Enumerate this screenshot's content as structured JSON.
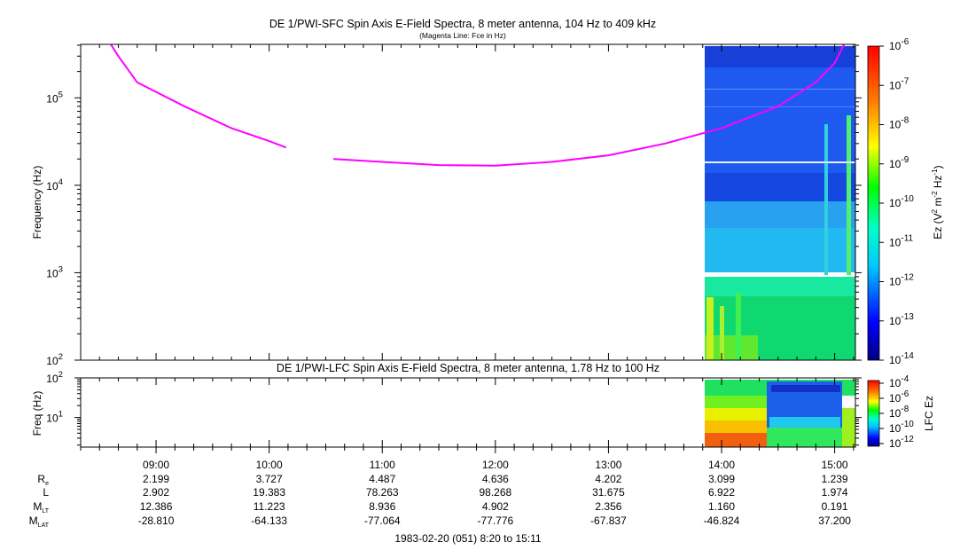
{
  "chart_data": [
    {
      "type": "heatmap",
      "title": "DE 1/PWI-SFC  Spin Axis E-Field Spectra, 8 meter antenna, 104 Hz to 409 kHz",
      "subtitle": "(Magenta Line: Fce in Hz)",
      "ylabel": "Frequency (Hz)",
      "yscale": "log",
      "ylim": [
        100,
        409000
      ],
      "y_ticks": [
        {
          "value": 100,
          "base": "10",
          "exp": "2"
        },
        {
          "value": 1000,
          "base": "10",
          "exp": "3"
        },
        {
          "value": 10000,
          "base": "10",
          "exp": "4"
        },
        {
          "value": 100000,
          "base": "10",
          "exp": "5"
        }
      ],
      "xlim": [
        "08:20",
        "15:11"
      ],
      "data_start": "13:51",
      "colorbar": {
        "label_main": "Ez (V",
        "label_sup1": "2",
        "label_mid": " m",
        "label_sup2": "-2",
        "label_mid2": " Hz",
        "label_sup3": "-1",
        "label_end": ")",
        "scale": "log",
        "range": [
          1e-14,
          1e-06
        ],
        "ticks": [
          {
            "base": "10",
            "exp": "-6"
          },
          {
            "base": "10",
            "exp": "-7"
          },
          {
            "base": "10",
            "exp": "-8"
          },
          {
            "base": "10",
            "exp": "-9"
          },
          {
            "base": "10",
            "exp": "-10"
          },
          {
            "base": "10",
            "exp": "-11"
          },
          {
            "base": "10",
            "exp": "-12"
          },
          {
            "base": "10",
            "exp": "-13"
          },
          {
            "base": "10",
            "exp": "-14"
          }
        ]
      },
      "fce_line": {
        "color": "#ff00ff",
        "segments": [
          [
            [
              "08:36",
              409000
            ],
            [
              "08:40",
              300000
            ],
            [
              "08:50",
              150000
            ],
            [
              "09:15",
              80000
            ],
            [
              "09:40",
              45000
            ],
            [
              "10:00",
              32000
            ],
            [
              "10:09",
              27000
            ]
          ],
          [
            [
              "10:34",
              20000
            ],
            [
              "11:00",
              18500
            ],
            [
              "11:30",
              17000
            ],
            [
              "12:00",
              16800
            ],
            [
              "12:30",
              18500
            ],
            [
              "13:00",
              22000
            ],
            [
              "13:30",
              30000
            ],
            [
              "14:00",
              45000
            ],
            [
              "14:30",
              80000
            ],
            [
              "14:50",
              150000
            ],
            [
              "15:00",
              250000
            ],
            [
              "15:05",
              409000
            ]
          ]
        ]
      }
    },
    {
      "type": "heatmap",
      "title": "DE 1/PWI-LFC  Spin Axis E-Field Spectra, 8 meter antenna, 1.78 Hz to 100 Hz",
      "ylabel": "Freq (Hz)",
      "yscale": "log",
      "ylim": [
        1.78,
        100
      ],
      "y_ticks": [
        {
          "value": 10,
          "base": "10",
          "exp": "1"
        },
        {
          "value": 100,
          "base": "10",
          "exp": "2"
        }
      ],
      "xlim": [
        "08:20",
        "15:11"
      ],
      "data_start": "13:51",
      "colorbar": {
        "label": "LFC Ez",
        "scale": "log",
        "range": [
          1e-12,
          0.0001
        ],
        "ticks": [
          {
            "base": "10",
            "exp": "-4"
          },
          {
            "base": "10",
            "exp": "-6"
          },
          {
            "base": "10",
            "exp": "-8"
          },
          {
            "base": "10",
            "exp": "-10"
          },
          {
            "base": "10",
            "exp": "-12"
          }
        ]
      }
    }
  ],
  "x_ticks": [
    "09:00",
    "10:00",
    "11:00",
    "12:00",
    "13:00",
    "14:00",
    "15:00"
  ],
  "ephemeris": [
    {
      "label": "R",
      "sub": "e",
      "values": [
        "2.199",
        "3.727",
        "4.487",
        "4.636",
        "4.202",
        "3.099",
        "1.239"
      ]
    },
    {
      "label": "L",
      "sub": "",
      "values": [
        "2.902",
        "19.383",
        "78.263",
        "98.268",
        "31.675",
        "6.922",
        "1.974"
      ]
    },
    {
      "label": "M",
      "sub": "LT",
      "values": [
        "12.386",
        "11.223",
        "8.936",
        "4.902",
        "2.356",
        "1.160",
        "0.191"
      ]
    },
    {
      "label": "M",
      "sub": "LAT",
      "values": [
        "-28.810",
        "-64.133",
        "-77.064",
        "-77.776",
        "-67.837",
        "-46.824",
        "37.200"
      ]
    }
  ],
  "footer": "1983-02-20 (051) 8:20 to 15:11"
}
